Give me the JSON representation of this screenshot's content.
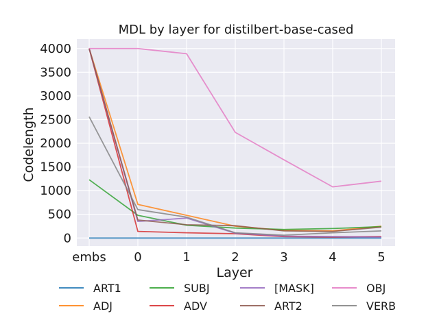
{
  "chart_data": {
    "type": "line",
    "title": "MDL by layer for distilbert-base-cased",
    "xlabel": "Layer",
    "ylabel": "Codelength",
    "x": [
      "embs",
      "0",
      "1",
      "2",
      "3",
      "4",
      "5"
    ],
    "yticks": [
      "0",
      "500",
      "1000",
      "1500",
      "2000",
      "2500",
      "3000",
      "3500",
      "4000"
    ],
    "ylim": [
      -170,
      4200
    ],
    "grid": true,
    "legend_position": "bottom",
    "series": [
      {
        "name": "ART1",
        "color": "#1f77b4",
        "values": [
          0,
          0,
          0,
          0,
          0,
          0,
          0
        ]
      },
      {
        "name": "ADJ",
        "color": "#ff7f0e",
        "values": [
          4000,
          710,
          480,
          250,
          160,
          150,
          250
        ]
      },
      {
        "name": "SUBJ",
        "color": "#2ca02c",
        "values": [
          1230,
          480,
          270,
          210,
          180,
          200,
          240
        ]
      },
      {
        "name": "ADV",
        "color": "#d62728",
        "values": [
          4000,
          140,
          110,
          90,
          30,
          20,
          30
        ]
      },
      {
        "name": "[MASK]",
        "color": "#9467bd",
        "values": [
          4000,
          350,
          420,
          100,
          40,
          30,
          20
        ]
      },
      {
        "name": "ART2",
        "color": "#8c564b",
        "values": [
          4000,
          380,
          280,
          260,
          150,
          140,
          230
        ]
      },
      {
        "name": "OBJ",
        "color": "#e377c2",
        "values": [
          4000,
          4000,
          3890,
          2230,
          1650,
          1080,
          1200
        ]
      },
      {
        "name": "VERB",
        "color": "#7f7f7f",
        "values": [
          2560,
          600,
          440,
          110,
          60,
          110,
          150
        ]
      }
    ]
  }
}
